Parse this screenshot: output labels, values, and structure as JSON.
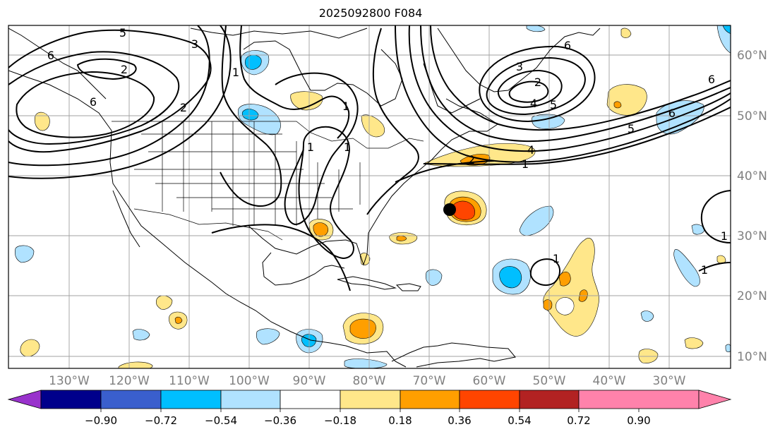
{
  "title": "2025092800 F084",
  "lon_labels": [
    "130°W",
    "120°W",
    "110°W",
    "100°W",
    "90°W",
    "80°W",
    "70°W",
    "60°W",
    "50°W",
    "40°W",
    "30°W"
  ],
  "lat_labels": [
    "60°N",
    "50°N",
    "40°N",
    "30°N",
    "20°N",
    "10°N"
  ],
  "colorbar": {
    "ticks": [
      "−0.90",
      "−0.72",
      "−0.54",
      "−0.36",
      "−0.18",
      "0.18",
      "0.36",
      "0.54",
      "0.72",
      "0.90"
    ],
    "colors": [
      "#9932cc",
      "#00008b",
      "#3a5fcd",
      "#00bfff",
      "#b0e2ff",
      "#ffffff",
      "#ffe78a",
      "#ff9f00",
      "#ff4500",
      "#b22222",
      "#ff82ab"
    ]
  },
  "contour_labels": [
    "5",
    "6",
    "3",
    "2",
    "2",
    "6",
    "1",
    "1",
    "1",
    "1",
    "6",
    "3",
    "2",
    "5",
    "4",
    "4",
    "6",
    "5",
    "2",
    "1",
    "1",
    "1",
    "6",
    "1"
  ],
  "marker": {
    "type": "black-dot",
    "lon": -67,
    "lat": 34.5
  }
}
